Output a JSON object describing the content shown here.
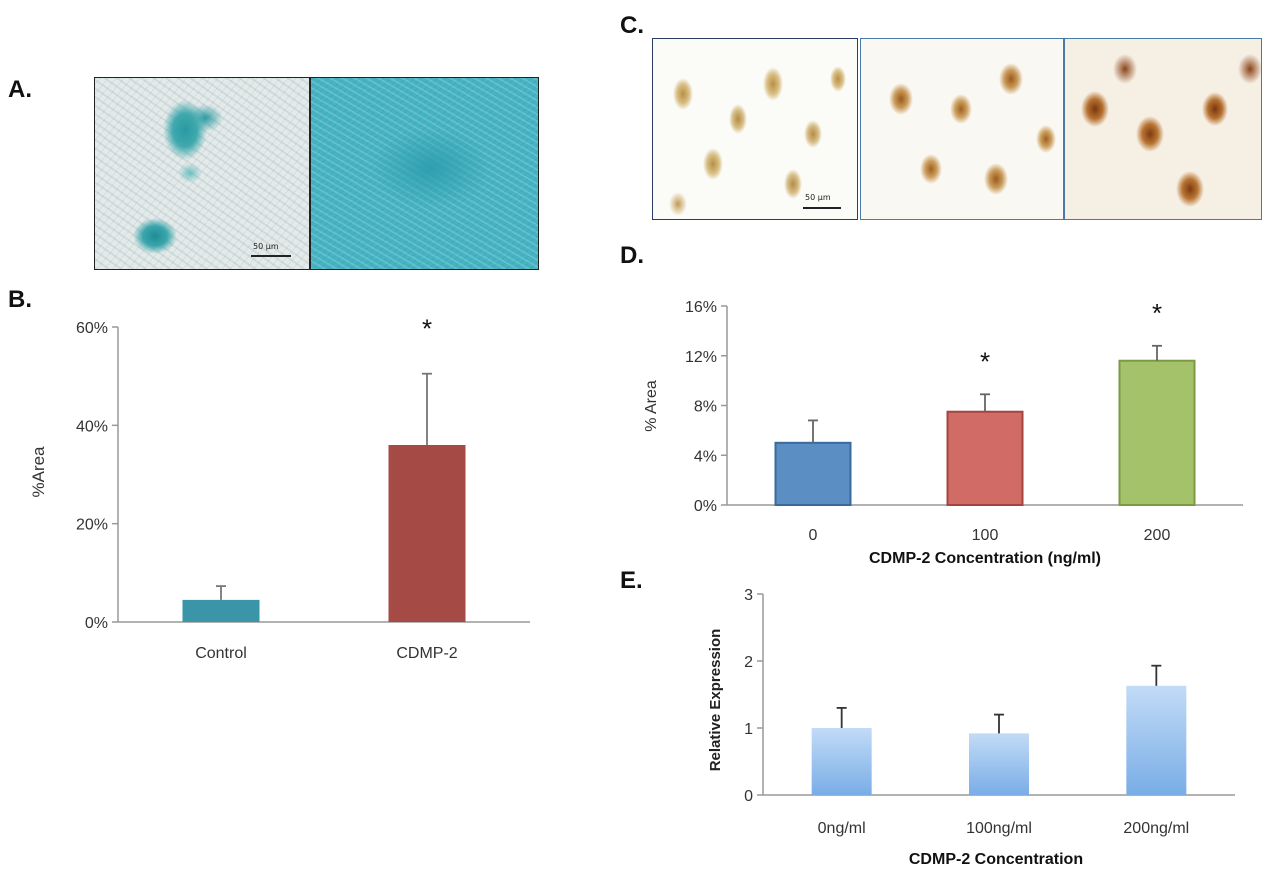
{
  "panels": {
    "a": "A.",
    "b": "B.",
    "c": "C.",
    "d": "D.",
    "e": "E."
  },
  "micrographs": {
    "a_scale": "50 μm",
    "c_scale": "50 μm"
  },
  "colors": {
    "b_control": "#3a95a8",
    "b_cdmp2": "#a64a46",
    "d_0": "#5b8fc4",
    "d_100": "#d06c65",
    "d_200": "#a4c26a",
    "e_bar_top": "#b9d4f5",
    "e_bar_bottom": "#7aaee6",
    "axis": "#999999"
  },
  "chart_data": [
    {
      "id": "B",
      "type": "bar",
      "categories": [
        "Control",
        "CDMP-2"
      ],
      "values": [
        0.045,
        0.36
      ],
      "errors": [
        0.028,
        0.145
      ],
      "significance": [
        "",
        "*"
      ],
      "ylabel": "%Area",
      "xlabel": "",
      "ylim": [
        0,
        0.6
      ],
      "yticks": [
        "0%",
        "20%",
        "40%",
        "60%"
      ]
    },
    {
      "id": "D",
      "type": "bar",
      "categories": [
        "0",
        "100",
        "200"
      ],
      "values": [
        0.05,
        0.075,
        0.116
      ],
      "errors": [
        0.018,
        0.014,
        0.012
      ],
      "significance": [
        "",
        "*",
        "*"
      ],
      "ylabel": "% Area",
      "xlabel": "CDMP-2  Concentration (ng/ml)",
      "ylim": [
        0,
        0.16
      ],
      "yticks": [
        "0%",
        "4%",
        "8%",
        "12%",
        "16%"
      ]
    },
    {
      "id": "E",
      "type": "bar",
      "categories": [
        "0ng/ml",
        "100ng/ml",
        "200ng/ml"
      ],
      "values": [
        1.0,
        0.92,
        1.63
      ],
      "errors": [
        0.3,
        0.28,
        0.3
      ],
      "significance": [
        "",
        "",
        ""
      ],
      "ylabel": "Relative Expression",
      "xlabel": "CDMP-2 Concentration",
      "ylim": [
        0,
        3
      ],
      "yticks": [
        "0",
        "1",
        "2",
        "3"
      ]
    }
  ]
}
